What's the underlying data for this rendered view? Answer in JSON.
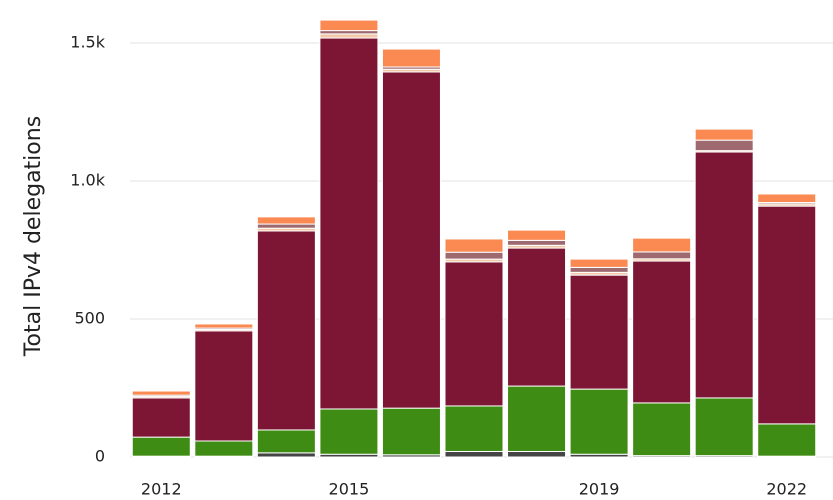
{
  "chart_data": {
    "type": "stacked_bar",
    "y_label": "Total IPv4 delegations",
    "categories": [
      "2012",
      null,
      null,
      "2015",
      null,
      null,
      null,
      "2019",
      null,
      null,
      "2022"
    ],
    "series": [
      {
        "color": "#454545",
        "values": [
          3,
          3,
          15,
          10,
          8,
          20,
          20,
          10,
          5,
          5,
          3
        ]
      },
      {
        "color": "#3f8c14",
        "values": [
          69,
          55,
          83,
          164,
          169,
          165,
          237,
          236,
          191,
          209,
          117
        ]
      },
      {
        "color": "#7d1634",
        "values": [
          142,
          399,
          721,
          1344,
          1218,
          522,
          500,
          413,
          514,
          891,
          789
        ]
      },
      {
        "color": "#f2c9a8",
        "values": [
          5,
          5,
          10,
          15,
          10,
          10,
          10,
          10,
          8,
          5,
          8
        ]
      },
      {
        "color": "#9f6a6f",
        "values": [
          5,
          5,
          15,
          12,
          8,
          25,
          18,
          18,
          25,
          38,
          5
        ]
      },
      {
        "color": "#fa8a52",
        "values": [
          15,
          15,
          26,
          38,
          65,
          48,
          37,
          30,
          50,
          40,
          31
        ]
      }
    ],
    "ylim": [
      0,
      1600
    ],
    "yticks": [
      0,
      500,
      {
        "value": 1000,
        "label": "1.0k"
      },
      {
        "value": 1500,
        "label": "1.5k"
      }
    ],
    "grid": true
  }
}
